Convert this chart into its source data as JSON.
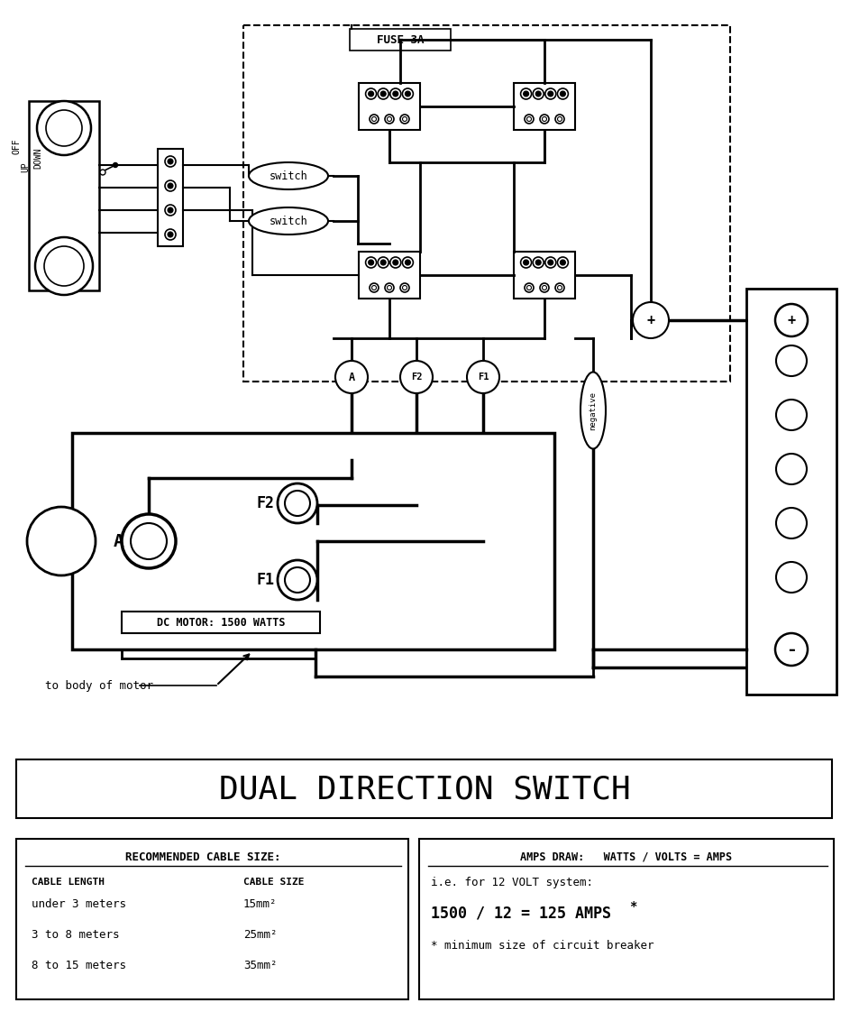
{
  "bg_color": "#ffffff",
  "title": "DUAL DIRECTION SWITCH",
  "fuse_label": "FUSE 3A",
  "motor_label": "DC MOTOR: 1500 WATTS",
  "body_label": "to body of motor",
  "cable_table_title": "RECOMMENDED CABLE SIZE:",
  "cable_col1_header": "CABLE LENGTH",
  "cable_col2_header": "CABLE SIZE",
  "cable_rows": [
    [
      "under 3 meters",
      "15mm²"
    ],
    [
      "3 to 8 meters",
      "25mm²"
    ],
    [
      "8 to 15 meters",
      "35mm²"
    ]
  ],
  "amps_title": "AMPS DRAW:   WATTS / VOLTS = AMPS",
  "amps_line1": "i.e. for 12 VOLT system:",
  "amps_line2": "1500 / 12 = 125 AMPS",
  "amps_star": "*",
  "amps_line3": "* minimum size of circuit breaker"
}
